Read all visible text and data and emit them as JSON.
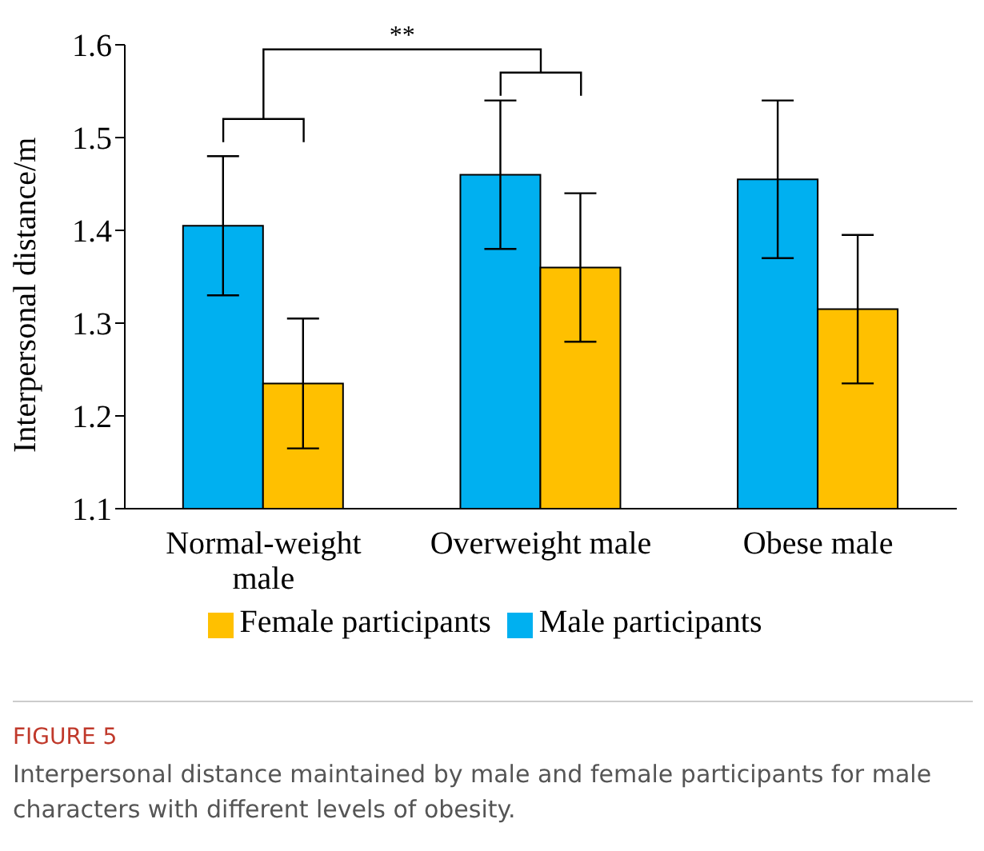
{
  "chart_data": {
    "type": "bar",
    "ylabel": "Interpersonal distance/m",
    "categories": [
      "Normal-weight male",
      "Overweight male",
      "Obese male"
    ],
    "series": [
      {
        "name": "Male participants",
        "color": "#00b0f0",
        "values": [
          1.405,
          1.46,
          1.455
        ],
        "errors": [
          0.075,
          0.08,
          0.085
        ]
      },
      {
        "name": "Female participants",
        "color": "#ffc000",
        "values": [
          1.235,
          1.36,
          1.315
        ],
        "errors": [
          0.07,
          0.08,
          0.08
        ]
      }
    ],
    "ylim": [
      1.1,
      1.6
    ],
    "yticks": [
      1.1,
      1.2,
      1.3,
      1.4,
      1.5,
      1.6
    ],
    "grid": false,
    "legend": "bottom",
    "annotations": [
      "**",
      "FIGURE 5",
      "Interpersonal distance maintained by male and female participants for male characters with different levels of obesity."
    ]
  }
}
